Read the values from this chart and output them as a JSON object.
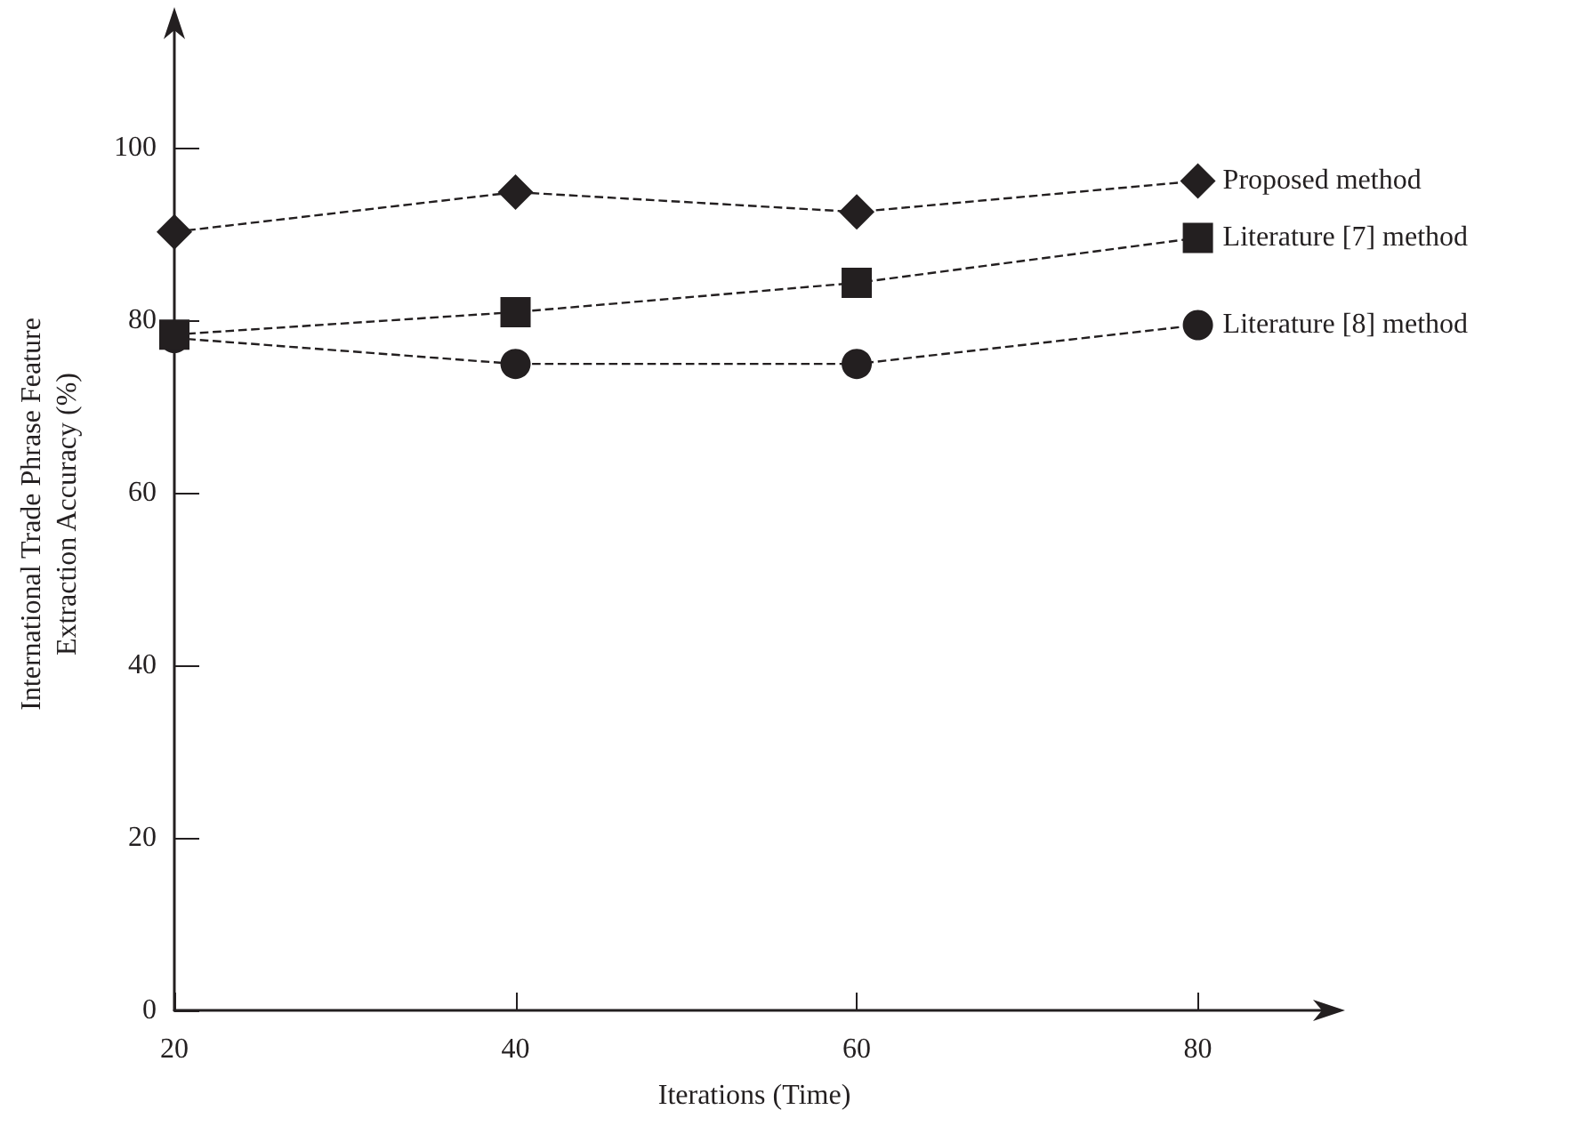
{
  "chart_data": {
    "type": "line",
    "xlabel": "Iterations (Time)",
    "ylabel": "International Trade Phrase Feature\nExtraction Accuracy (%)",
    "x": [
      20,
      40,
      60,
      80
    ],
    "xlim": [
      20,
      88
    ],
    "xticks": [
      20,
      40,
      60,
      80
    ],
    "ylim": [
      0,
      115
    ],
    "yticks": [
      0,
      20,
      40,
      60,
      80,
      100
    ],
    "grid": false,
    "line_style": "dashed",
    "series": [
      {
        "name": "Proposed method",
        "color": "#231f20",
        "marker": "diamond",
        "values": [
          90.2,
          94.8,
          92.5,
          96.1
        ]
      },
      {
        "name": "Literature [7] method",
        "color": "#231f20",
        "marker": "square",
        "values": [
          78.3,
          80.9,
          84.3,
          89.5
        ]
      },
      {
        "name": "Literature [8] method",
        "color": "#231f20",
        "marker": "circle",
        "values": [
          77.9,
          74.9,
          74.9,
          79.4
        ]
      }
    ]
  }
}
